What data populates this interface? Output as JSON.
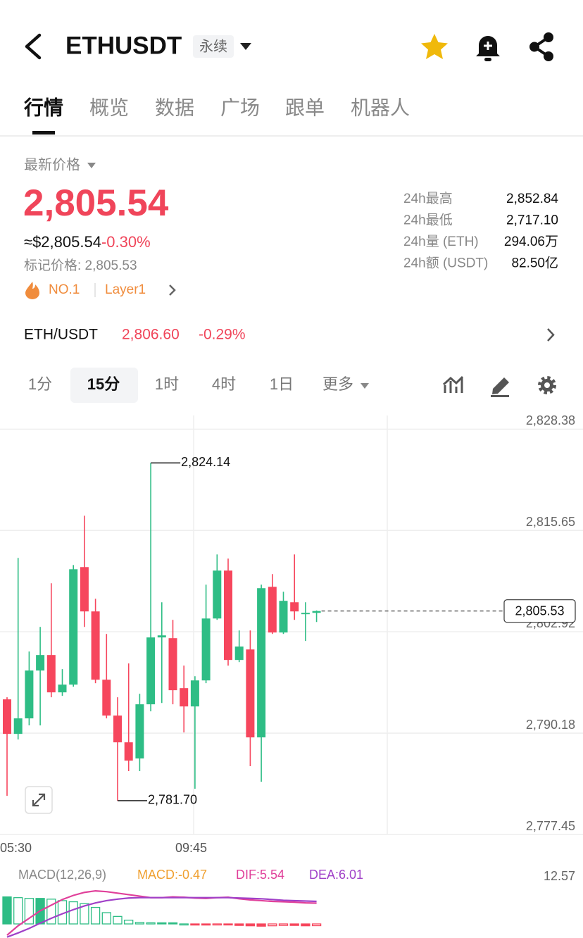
{
  "header": {
    "symbol": "ETHUSDT",
    "contract_type": "永续"
  },
  "tabs": [
    "行情",
    "概览",
    "数据",
    "广场",
    "跟单",
    "机器人"
  ],
  "active_tab": 0,
  "price": {
    "label": "最新价格",
    "last": "2,805.54",
    "usd": "≈$2,805.54",
    "change": "-0.30%",
    "mark_price": "标记价格: 2,805.53",
    "tags": [
      "NO.1",
      "Layer1"
    ]
  },
  "stats": [
    {
      "label": "24h最高",
      "value": "2,852.84"
    },
    {
      "label": "24h最低",
      "value": "2,717.10"
    },
    {
      "label": "24h量 (ETH)",
      "value": "294.06万"
    },
    {
      "label": "24h额 (USDT)",
      "value": "82.50亿"
    }
  ],
  "spot": {
    "pair": "ETH/USDT",
    "price": "2,806.60",
    "change": "-0.29%"
  },
  "intervals": [
    "1分",
    "15分",
    "1时",
    "4时",
    "1日",
    "更多"
  ],
  "active_interval": 1,
  "chart_data": [
    {
      "type": "candlestick",
      "up_color": "#2ebd85",
      "down_color": "#f6465d",
      "open": [
        2794.43,
        2790.09,
        2792.04,
        2798.05,
        2800.0,
        2795.31,
        2796.28,
        2811.05,
        2805.48,
        2796.9,
        2792.39,
        2789.03,
        2787.0,
        2793.81,
        2802.21,
        2802.12,
        2795.84,
        2793.54,
        2796.81,
        2804.59,
        2810.61,
        2799.38,
        2800.7,
        2789.65,
        2808.57,
        2802.83,
        2806.63,
        2805.13,
        2805.3
      ],
      "high": [
        2794.69,
        2812.2,
        2800.44,
        2803.53,
        2809.02,
        2798.23,
        2811.31,
        2817.5,
        2807.07,
        2802.65,
        2794.69,
        2798.94,
        2795.13,
        2824.14,
        2806.63,
        2804.42,
        2798.67,
        2797.34,
        2808.84,
        2812.64,
        2812.11,
        2803.09,
        2803.09,
        2808.84,
        2810.17,
        2807.95,
        2812.64,
        2806.63,
        2805.6
      ],
      "low": [
        2782.31,
        2789.39,
        2791.16,
        2791.16,
        2794.69,
        2794.87,
        2796.02,
        2803.53,
        2796.46,
        2792.04,
        2781.7,
        2785.41,
        2785.41,
        2792.92,
        2793.98,
        2793.81,
        2790.27,
        2783.2,
        2796.46,
        2804.42,
        2798.67,
        2799.11,
        2786.03,
        2784.08,
        2802.65,
        2802.65,
        2804.42,
        2801.77,
        2804.15
      ],
      "close": [
        2790.09,
        2792.04,
        2798.05,
        2800.0,
        2795.31,
        2796.28,
        2810.78,
        2805.48,
        2796.9,
        2792.39,
        2789.03,
        2786.73,
        2793.81,
        2802.21,
        2802.47,
        2795.58,
        2793.54,
        2796.81,
        2804.59,
        2810.61,
        2799.38,
        2801.06,
        2789.65,
        2808.4,
        2802.83,
        2806.81,
        2805.48,
        2805.3,
        2805.53
      ],
      "ylim": [
        2777.45,
        2830.1
      ],
      "yticks": [
        {
          "value": 2777.45,
          "label": "2,777.45"
        },
        {
          "value": 2790.18,
          "label": "2,790.18"
        },
        {
          "value": 2802.92,
          "label": "2,802.92"
        },
        {
          "value": 2815.65,
          "label": "2,815.65"
        },
        {
          "value": 2828.38,
          "label": "2,828.38"
        }
      ],
      "grid": true,
      "annotations": [
        {
          "value": 2824.14,
          "label": "2,824.14"
        },
        {
          "value": 2781.7,
          "label": "2,781.70"
        }
      ],
      "last_price": {
        "value": 2805.53,
        "label": "2,805.53"
      },
      "x_labels": [
        "05:30",
        "09:45"
      ]
    },
    {
      "type": "macd",
      "title": "MACD(12,26,9)",
      "up_color": "#2ebd85",
      "down_color": "#f6465d",
      "ylim": [
        -3.75,
        12.57
      ],
      "yticks": [
        12.57
      ],
      "histogram": {
        "name": "MACD",
        "legend": "MACD:-0.47",
        "color": "#f0a030",
        "values": [
          7.2,
          7.0,
          6.8,
          6.8,
          6.6,
          6.2,
          5.9,
          5.4,
          4.4,
          3.0,
          2.0,
          1.0,
          0.4,
          0.3,
          0.3,
          0.3,
          0.0,
          -0.3,
          -0.3,
          -0.1,
          -0.2,
          -0.4,
          -0.5,
          -0.6,
          -0.5,
          -0.4,
          -0.4,
          -0.5,
          -0.47
        ]
      },
      "series": [
        {
          "name": "DIF",
          "legend": "DIF:5.54",
          "color": "#e0409a",
          "values": [
            -3.0,
            -0.5,
            1.5,
            3.5,
            5.0,
            6.5,
            7.6,
            8.4,
            8.8,
            8.6,
            8.2,
            7.8,
            7.4,
            7.0,
            7.0,
            7.2,
            7.1,
            6.9,
            6.8,
            7.0,
            7.1,
            6.7,
            6.4,
            6.2,
            6.0,
            5.9,
            5.8,
            5.6,
            5.54
          ]
        },
        {
          "name": "DEA",
          "legend": "DEA:6.01",
          "color": "#a040c8",
          "values": [
            -3.5,
            -2.4,
            -1.2,
            0.2,
            1.5,
            2.7,
            3.8,
            4.8,
            5.6,
            6.2,
            6.6,
            6.9,
            7.0,
            7.0,
            7.0,
            7.0,
            7.0,
            7.0,
            7.0,
            7.0,
            7.0,
            6.9,
            6.8,
            6.7,
            6.5,
            6.3,
            6.2,
            6.1,
            6.01
          ]
        }
      ]
    }
  ]
}
